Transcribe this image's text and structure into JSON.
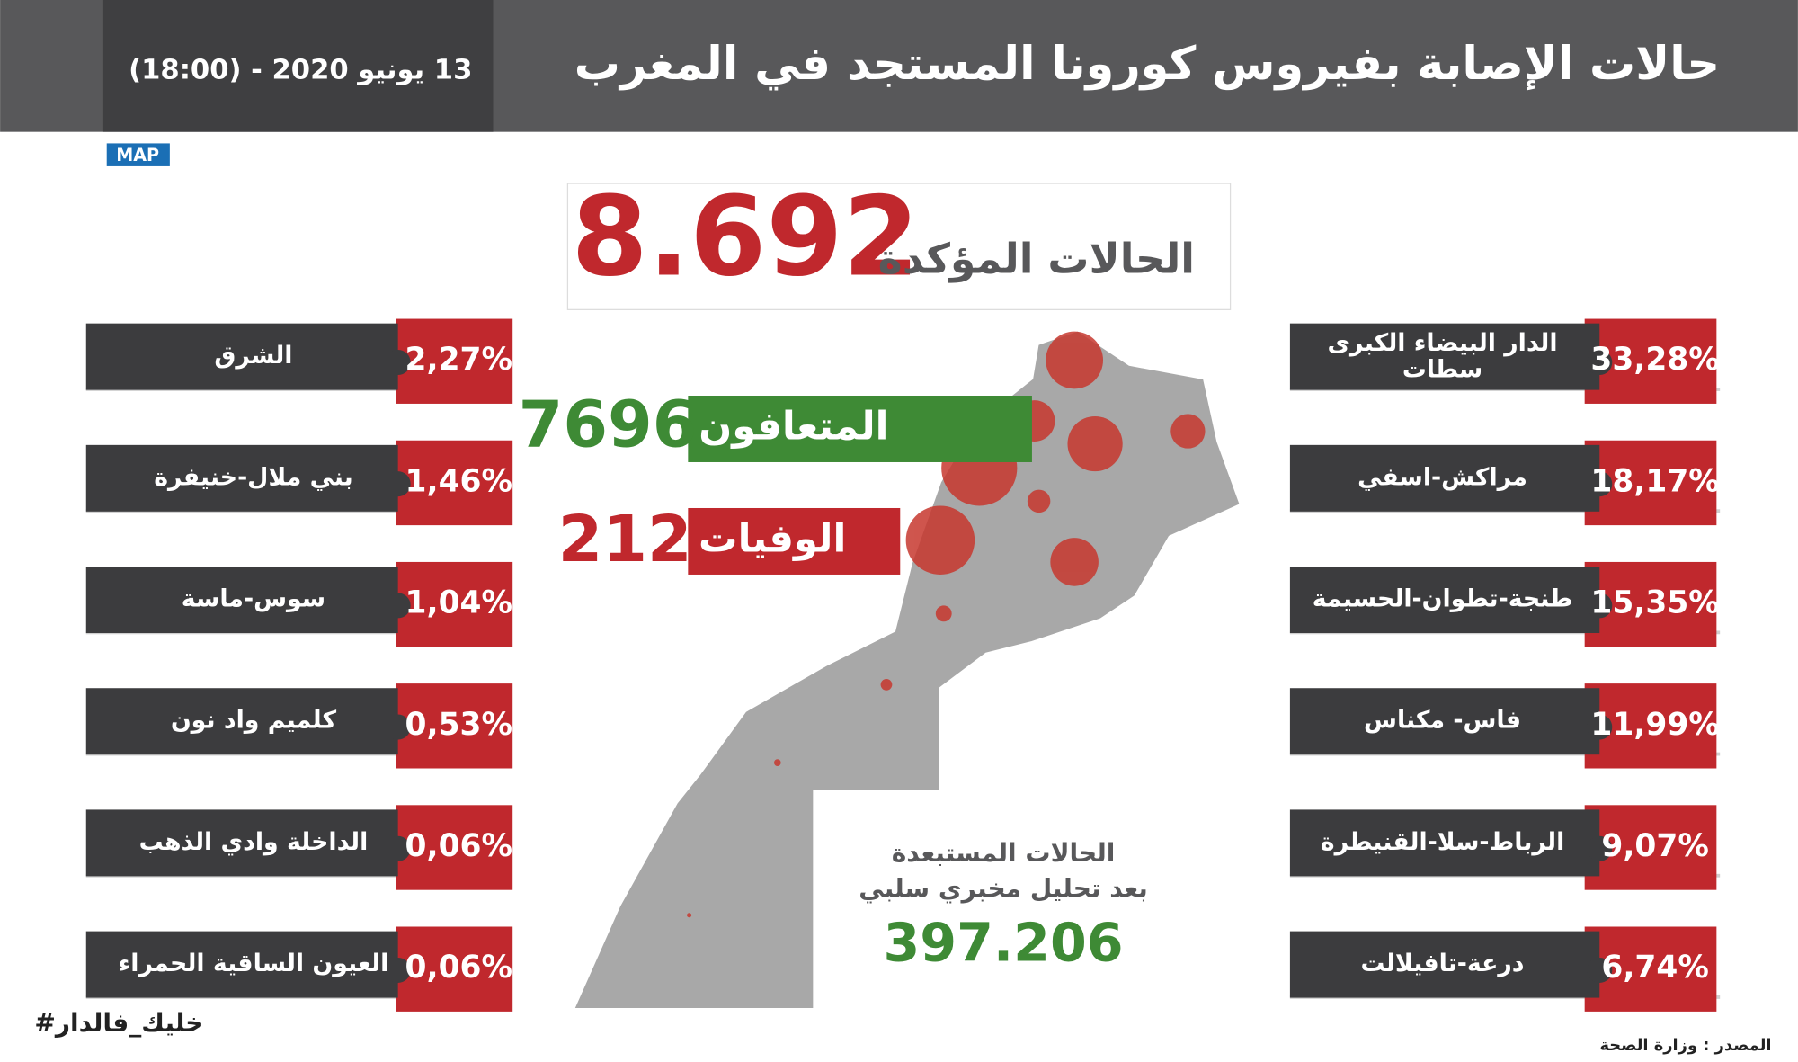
{
  "header": {
    "title": "حالات الإصابة بفيروس كورونا المستجد في المغرب",
    "date": "13 يونيو 2020 - (18:00)",
    "logo": "MAP"
  },
  "confirmed": {
    "label": "الحالات المؤكدة",
    "value": "8.692"
  },
  "recovered": {
    "label": "المتعافون",
    "value": "7696"
  },
  "deaths": {
    "label": "الوفيات",
    "value": "212"
  },
  "excluded": {
    "line1": "الحالات المستبعدة",
    "line2": "بعد تحليل مخبري سلبي",
    "value": "397.206"
  },
  "regions_right": [
    {
      "name": "الدار البيضاء الكبرى\nسطات",
      "share": "33,28%"
    },
    {
      "name": "مراكش-اسفي",
      "share": "18,17%"
    },
    {
      "name": "طنجة-تطوان-الحسيمة",
      "share": "15,35%"
    },
    {
      "name": "فاس- مكناس",
      "share": "11,99%"
    },
    {
      "name": "الرباط-سلا-القنيطرة",
      "share": "9,07%"
    },
    {
      "name": "درعة-تافيلالت",
      "share": "6,74%"
    }
  ],
  "regions_left": [
    {
      "name": "الشرق",
      "share": "2,27%"
    },
    {
      "name": "بني ملال-خنيفرة",
      "share": "1,46%"
    },
    {
      "name": "سوس-ماسة",
      "share": "1,04%"
    },
    {
      "name": "كلميم واد نون",
      "share": "0,53%"
    },
    {
      "name": "الداخلة وادي الذهب",
      "share": "0,06%"
    },
    {
      "name": "العيون الساقية الحمراء",
      "share": "0,06%"
    }
  ],
  "hashtag": "#خليك_فالدار",
  "source": "المصدر : وزارة الصحة"
}
